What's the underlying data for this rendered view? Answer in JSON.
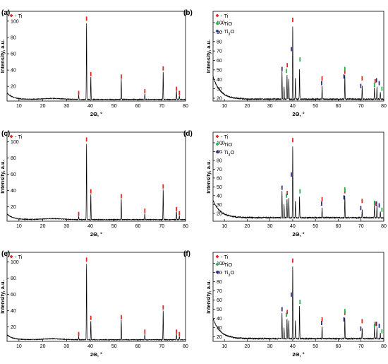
{
  "colors": {
    "Ti": "#e8251f",
    "TiO": "#22b14c",
    "Ti3O": "#2e3192",
    "trace": "#000000"
  },
  "chart_data": [
    {
      "panel": "(a)",
      "type": "line",
      "xlabel": "2Θ, °",
      "ylabel": "Intensity, a.u.",
      "xlim": [
        5,
        80
      ],
      "ylim": [
        2,
        112
      ],
      "xticks": [
        10,
        20,
        30,
        40,
        50,
        60,
        70,
        80
      ],
      "yticks": [
        20,
        40,
        60,
        80,
        100
      ],
      "legend": [
        {
          "symbol": "Ti",
          "text": "- Ti"
        }
      ],
      "background": {
        "start": 12,
        "decay": 2.5,
        "floor": 4,
        "hump": 1.2
      },
      "peaks": [
        {
          "x": 35.1,
          "y": 9
        },
        {
          "x": 38.4,
          "y": 100
        },
        {
          "x": 40.2,
          "y": 32
        },
        {
          "x": 53.0,
          "y": 29
        },
        {
          "x": 62.9,
          "y": 11
        },
        {
          "x": 70.6,
          "y": 39
        },
        {
          "x": 76.2,
          "y": 14
        },
        {
          "x": 77.4,
          "y": 9
        }
      ],
      "markers": [
        {
          "phase": "Ti",
          "x": 35.1,
          "y": 12
        },
        {
          "phase": "Ti",
          "x": 38.4,
          "y": 103
        },
        {
          "phase": "Ti",
          "x": 40.2,
          "y": 35
        },
        {
          "phase": "Ti",
          "x": 53.0,
          "y": 32
        },
        {
          "phase": "Ti",
          "x": 62.9,
          "y": 14
        },
        {
          "phase": "Ti",
          "x": 70.6,
          "y": 42
        },
        {
          "phase": "Ti",
          "x": 76.2,
          "y": 17
        },
        {
          "phase": "Ti",
          "x": 77.4,
          "y": 12
        }
      ]
    },
    {
      "panel": "(b)",
      "type": "line",
      "xlabel": "2Θ, °",
      "ylabel": "Intensity, a.u.",
      "xlim": [
        5,
        80
      ],
      "ylim": [
        17,
        112
      ],
      "xticks": [
        10,
        20,
        30,
        40,
        50,
        60,
        70,
        80
      ],
      "yticks": [
        20,
        30,
        40,
        50,
        60,
        70,
        80,
        90,
        100
      ],
      "legend": [
        {
          "symbol": "Ti",
          "text": "- Ti"
        },
        {
          "symbol": "TiO",
          "text": "- TiO"
        },
        {
          "symbol": "Ti3O",
          "text": "- Ti",
          "sub": "3",
          "tail": "O"
        }
      ],
      "background": {
        "start": 43,
        "decay": 3.2,
        "floor": 19,
        "hump": 0
      },
      "peaks": [
        {
          "x": 35.3,
          "y": 48
        },
        {
          "x": 36.2,
          "y": 33
        },
        {
          "x": 37.5,
          "y": 45
        },
        {
          "x": 38.3,
          "y": 41
        },
        {
          "x": 40.0,
          "y": 98
        },
        {
          "x": 41.2,
          "y": 42
        },
        {
          "x": 43.0,
          "y": 52
        },
        {
          "x": 52.9,
          "y": 33
        },
        {
          "x": 62.9,
          "y": 44
        },
        {
          "x": 70.5,
          "y": 33
        },
        {
          "x": 75.9,
          "y": 31
        },
        {
          "x": 77.0,
          "y": 32
        },
        {
          "x": 78.5,
          "y": 27
        }
      ],
      "markers": [
        {
          "phase": "Ti",
          "x": 37.6,
          "y": 55
        },
        {
          "phase": "Ti",
          "x": 40.0,
          "y": 103
        },
        {
          "phase": "Ti",
          "x": 52.9,
          "y": 41
        },
        {
          "phase": "Ti",
          "x": 62.9,
          "y": 48
        },
        {
          "phase": "Ti",
          "x": 70.5,
          "y": 41
        },
        {
          "phase": "Ti",
          "x": 76.2,
          "y": 38
        },
        {
          "phase": "TiO",
          "x": 37.2,
          "y": 49
        },
        {
          "phase": "TiO",
          "x": 43.2,
          "y": 61
        },
        {
          "phase": "TiO",
          "x": 62.9,
          "y": 51
        },
        {
          "phase": "TiO",
          "x": 75.9,
          "y": 34
        },
        {
          "phase": "TiO",
          "x": 79.2,
          "y": 30
        },
        {
          "phase": "Ti3O",
          "x": 35.3,
          "y": 51
        },
        {
          "phase": "Ti3O",
          "x": 39.4,
          "y": 72
        },
        {
          "phase": "Ti3O",
          "x": 52.7,
          "y": 36
        },
        {
          "phase": "Ti3O",
          "x": 62.5,
          "y": 43
        },
        {
          "phase": "Ti3O",
          "x": 69.9,
          "y": 33
        },
        {
          "phase": "Ti3O",
          "x": 76.8,
          "y": 39
        },
        {
          "phase": "Ti3O",
          "x": 78.0,
          "y": 36
        }
      ]
    },
    {
      "panel": "(c)",
      "type": "line",
      "xlabel": "2Θ, °",
      "ylabel": "Intensity, a.u.",
      "xlim": [
        5,
        80
      ],
      "ylim": [
        2,
        112
      ],
      "xticks": [
        10,
        20,
        30,
        40,
        50,
        60,
        70,
        80
      ],
      "yticks": [
        20,
        40,
        60,
        80,
        100
      ],
      "legend": [
        {
          "symbol": "Ti",
          "text": "- Ti"
        }
      ],
      "background": {
        "start": 11,
        "decay": 2.5,
        "floor": 4,
        "hump": 1.2
      },
      "peaks": [
        {
          "x": 35.1,
          "y": 8
        },
        {
          "x": 38.4,
          "y": 100
        },
        {
          "x": 40.2,
          "y": 36
        },
        {
          "x": 53.0,
          "y": 30
        },
        {
          "x": 62.9,
          "y": 12
        },
        {
          "x": 70.6,
          "y": 42
        },
        {
          "x": 76.2,
          "y": 14
        },
        {
          "x": 77.4,
          "y": 9
        }
      ],
      "markers": [
        {
          "phase": "Ti",
          "x": 35.1,
          "y": 11
        },
        {
          "phase": "Ti",
          "x": 38.4,
          "y": 103
        },
        {
          "phase": "Ti",
          "x": 40.2,
          "y": 39
        },
        {
          "phase": "Ti",
          "x": 53.0,
          "y": 33
        },
        {
          "phase": "Ti",
          "x": 62.9,
          "y": 15
        },
        {
          "phase": "Ti",
          "x": 70.6,
          "y": 45
        },
        {
          "phase": "Ti",
          "x": 76.2,
          "y": 17
        },
        {
          "phase": "Ti",
          "x": 77.4,
          "y": 12
        }
      ]
    },
    {
      "panel": "(d)",
      "type": "line",
      "xlabel": "2Θ, °",
      "ylabel": "Intensity, a.u.",
      "xlim": [
        5,
        80
      ],
      "ylim": [
        11,
        112
      ],
      "xticks": [
        10,
        20,
        30,
        40,
        50,
        60,
        70,
        80
      ],
      "yticks": [
        20,
        30,
        40,
        50,
        60,
        70,
        80,
        90,
        100
      ],
      "legend": [
        {
          "symbol": "Ti",
          "text": "- Ti"
        },
        {
          "symbol": "TiO",
          "text": "- TiO"
        },
        {
          "symbol": "Ti3O",
          "text": "- Ti",
          "sub": "3",
          "tail": "O"
        }
      ],
      "background": {
        "start": 35,
        "decay": 3.2,
        "floor": 15,
        "hump": 0
      },
      "peaks": [
        {
          "x": 35.3,
          "y": 45
        },
        {
          "x": 36.2,
          "y": 30
        },
        {
          "x": 37.5,
          "y": 37
        },
        {
          "x": 38.3,
          "y": 37
        },
        {
          "x": 40.0,
          "y": 98
        },
        {
          "x": 41.2,
          "y": 35
        },
        {
          "x": 43.0,
          "y": 40
        },
        {
          "x": 52.9,
          "y": 27
        },
        {
          "x": 62.9,
          "y": 40
        },
        {
          "x": 70.5,
          "y": 24
        },
        {
          "x": 75.9,
          "y": 29
        },
        {
          "x": 77.0,
          "y": 29
        },
        {
          "x": 78.5,
          "y": 22
        }
      ],
      "markers": [
        {
          "phase": "Ti",
          "x": 37.6,
          "y": 43
        },
        {
          "phase": "Ti",
          "x": 40.0,
          "y": 103
        },
        {
          "phase": "Ti",
          "x": 52.9,
          "y": 36
        },
        {
          "phase": "Ti",
          "x": 62.9,
          "y": 45
        },
        {
          "phase": "Ti",
          "x": 70.5,
          "y": 34
        },
        {
          "phase": "Ti",
          "x": 76.2,
          "y": 31
        },
        {
          "phase": "TiO",
          "x": 37.2,
          "y": 40
        },
        {
          "phase": "TiO",
          "x": 43.2,
          "y": 45
        },
        {
          "phase": "TiO",
          "x": 62.9,
          "y": 47
        },
        {
          "phase": "TiO",
          "x": 75.9,
          "y": 32
        },
        {
          "phase": "TiO",
          "x": 79.2,
          "y": 24
        },
        {
          "phase": "Ti3O",
          "x": 35.3,
          "y": 49
        },
        {
          "phase": "Ti3O",
          "x": 39.4,
          "y": 64
        },
        {
          "phase": "Ti3O",
          "x": 52.7,
          "y": 31
        },
        {
          "phase": "Ti3O",
          "x": 62.5,
          "y": 38
        },
        {
          "phase": "Ti3O",
          "x": 69.9,
          "y": 26
        },
        {
          "phase": "Ti3O",
          "x": 76.8,
          "y": 31
        },
        {
          "phase": "Ti3O",
          "x": 78.0,
          "y": 29
        }
      ]
    },
    {
      "panel": "(e)",
      "type": "line",
      "xlabel": "2Θ, °",
      "ylabel": "Intensity, a.u.",
      "xlim": [
        5,
        80
      ],
      "ylim": [
        2,
        112
      ],
      "xticks": [
        10,
        20,
        30,
        40,
        50,
        60,
        70,
        80
      ],
      "yticks": [
        20,
        40,
        60,
        80,
        100
      ],
      "legend": [
        {
          "symbol": "Ti",
          "text": "- Ti"
        }
      ],
      "background": {
        "start": 10,
        "decay": 2.5,
        "floor": 4,
        "hump": 1.2
      },
      "peaks": [
        {
          "x": 35.1,
          "y": 8
        },
        {
          "x": 38.4,
          "y": 100
        },
        {
          "x": 40.2,
          "y": 28
        },
        {
          "x": 53.0,
          "y": 29
        },
        {
          "x": 62.9,
          "y": 11
        },
        {
          "x": 70.6,
          "y": 41
        },
        {
          "x": 76.2,
          "y": 11
        },
        {
          "x": 77.4,
          "y": 8
        }
      ],
      "markers": [
        {
          "phase": "Ti",
          "x": 35.1,
          "y": 11
        },
        {
          "phase": "Ti",
          "x": 38.4,
          "y": 103
        },
        {
          "phase": "Ti",
          "x": 40.2,
          "y": 31
        },
        {
          "phase": "Ti",
          "x": 53.0,
          "y": 32
        },
        {
          "phase": "Ti",
          "x": 62.9,
          "y": 14
        },
        {
          "phase": "Ti",
          "x": 70.6,
          "y": 44
        },
        {
          "phase": "Ti",
          "x": 76.2,
          "y": 14
        },
        {
          "phase": "Ti",
          "x": 77.4,
          "y": 11
        }
      ]
    },
    {
      "panel": "(f)",
      "type": "line",
      "xlabel": "2Θ, °",
      "ylabel": "Intensity, a.u.",
      "xlim": [
        5,
        80
      ],
      "ylim": [
        15,
        112
      ],
      "xticks": [
        10,
        20,
        30,
        40,
        50,
        60,
        70,
        80
      ],
      "yticks": [
        20,
        30,
        40,
        50,
        60,
        70,
        80,
        90,
        100
      ],
      "legend": [
        {
          "symbol": "Ti",
          "text": "- Ti"
        },
        {
          "symbol": "TiO",
          "text": "- TiO"
        },
        {
          "symbol": "Ti3O",
          "text": "- Ti",
          "sub": "3",
          "tail": "O"
        }
      ],
      "background": {
        "start": 40,
        "decay": 3.2,
        "floor": 18,
        "hump": 0
      },
      "peaks": [
        {
          "x": 35.3,
          "y": 46
        },
        {
          "x": 36.2,
          "y": 30
        },
        {
          "x": 37.5,
          "y": 40
        },
        {
          "x": 38.3,
          "y": 38
        },
        {
          "x": 40.0,
          "y": 99
        },
        {
          "x": 41.2,
          "y": 38
        },
        {
          "x": 43.0,
          "y": 55
        },
        {
          "x": 52.9,
          "y": 32
        },
        {
          "x": 62.9,
          "y": 41
        },
        {
          "x": 70.5,
          "y": 29
        },
        {
          "x": 75.9,
          "y": 30
        },
        {
          "x": 77.0,
          "y": 30
        },
        {
          "x": 78.5,
          "y": 24
        }
      ],
      "markers": [
        {
          "phase": "Ti",
          "x": 37.6,
          "y": 47
        },
        {
          "phase": "Ti",
          "x": 40.0,
          "y": 103
        },
        {
          "phase": "Ti",
          "x": 52.9,
          "y": 39
        },
        {
          "phase": "Ti",
          "x": 62.9,
          "y": 46
        },
        {
          "phase": "Ti",
          "x": 70.5,
          "y": 37
        },
        {
          "phase": "Ti",
          "x": 76.2,
          "y": 34
        },
        {
          "phase": "TiO",
          "x": 37.2,
          "y": 44
        },
        {
          "phase": "TiO",
          "x": 43.2,
          "y": 58
        },
        {
          "phase": "TiO",
          "x": 62.9,
          "y": 48
        },
        {
          "phase": "TiO",
          "x": 75.9,
          "y": 32
        },
        {
          "phase": "TiO",
          "x": 79.2,
          "y": 26
        },
        {
          "phase": "Ti3O",
          "x": 35.3,
          "y": 50
        },
        {
          "phase": "Ti3O",
          "x": 39.4,
          "y": 66
        },
        {
          "phase": "Ti3O",
          "x": 52.7,
          "y": 35
        },
        {
          "phase": "Ti3O",
          "x": 62.5,
          "y": 39
        },
        {
          "phase": "Ti3O",
          "x": 69.9,
          "y": 29
        },
        {
          "phase": "Ti3O",
          "x": 76.8,
          "y": 34
        },
        {
          "phase": "Ti3O",
          "x": 78.0,
          "y": 32
        }
      ]
    }
  ]
}
